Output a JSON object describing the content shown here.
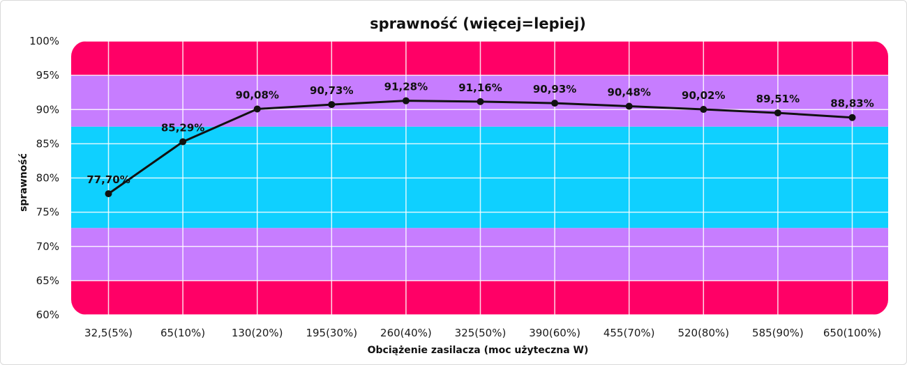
{
  "chart_data": {
    "type": "line",
    "title": "sprawność (więcej=lepiej)",
    "xlabel": "Obciążenie zasilacza (moc użyteczna W)",
    "ylabel": "sprawność",
    "categories": [
      "32,5(5%)",
      "65(10%)",
      "130(20%)",
      "195(30%)",
      "260(40%)",
      "325(50%)",
      "390(60%)",
      "455(70%)",
      "520(80%)",
      "585(90%)",
      "650(100%)"
    ],
    "y_ticks": [
      "60%",
      "65%",
      "70%",
      "75%",
      "80%",
      "85%",
      "90%",
      "95%",
      "100%"
    ],
    "ylim": [
      60,
      100
    ],
    "grid": true,
    "bands": [
      {
        "from": 60,
        "to": 65,
        "color": "#ff0066"
      },
      {
        "from": 65,
        "to": 72.7,
        "color": "#c77dff"
      },
      {
        "from": 72.7,
        "to": 87.5,
        "color": "#0fd0ff"
      },
      {
        "from": 87.5,
        "to": 95,
        "color": "#c77dff"
      },
      {
        "from": 95,
        "to": 100,
        "color": "#ff0066"
      }
    ],
    "series": [
      {
        "values": [
          77.7,
          85.29,
          90.08,
          90.73,
          91.28,
          91.16,
          90.93,
          90.48,
          90.02,
          89.51,
          88.83
        ],
        "labels": [
          "77,70%",
          "85,29%",
          "90,08%",
          "90,73%",
          "91,28%",
          "91,16%",
          "90,93%",
          "90,48%",
          "90,02%",
          "89,51%",
          "88,83%"
        ],
        "color": "#111111"
      }
    ]
  }
}
